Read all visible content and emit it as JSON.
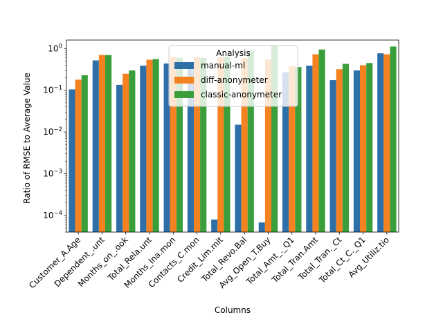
{
  "chart_data": {
    "type": "bar",
    "title": "",
    "xlabel": "Columns",
    "ylabel": "Ratio of RMSE to Average Value",
    "yscale": "log",
    "ylim": [
      4e-05,
      1.6
    ],
    "yticks": [
      {
        "value": 0.0001,
        "base": "10",
        "exp": "−4"
      },
      {
        "value": 0.001,
        "base": "10",
        "exp": "−3"
      },
      {
        "value": 0.01,
        "base": "10",
        "exp": "−2"
      },
      {
        "value": 0.1,
        "base": "10",
        "exp": "−1"
      },
      {
        "value": 1,
        "base": "10",
        "exp": "0"
      }
    ],
    "categories": [
      "Customer_A.Age",
      "Dependent_.unt",
      "Months_on_.ook",
      "Total_Rela.unt",
      "Months_Ina.mon",
      "Contacts_C.mon",
      "Credit_Lim.mit",
      "Total_Revo.Bal",
      "Avg_Open_T.Buy",
      "Total_Amt_._Q1",
      "Total_Tran.Amt",
      "Total_Tran._Ct",
      "Total_Ct_C._Q1",
      "Avg_Utiliz.tio"
    ],
    "series": [
      {
        "name": "manual-ml",
        "color": "#2f6fa8",
        "values": [
          0.105,
          0.52,
          0.135,
          0.39,
          0.44,
          0.43,
          8e-05,
          0.015,
          6.8e-05,
          0.27,
          0.39,
          0.175,
          0.3,
          0.77
        ]
      },
      {
        "name": "diff-anonymeter",
        "color": "#f58220",
        "values": [
          0.18,
          0.7,
          0.25,
          0.54,
          0.63,
          0.62,
          0.62,
          0.6,
          0.55,
          0.38,
          0.73,
          0.32,
          0.4,
          0.73
        ]
      },
      {
        "name": "classic-anonymeter",
        "color": "#3a9f3a",
        "values": [
          0.23,
          0.7,
          0.3,
          0.56,
          0.6,
          0.6,
          0.62,
          0.88,
          1.15,
          0.36,
          0.95,
          0.43,
          0.45,
          1.12
        ]
      }
    ],
    "legend": {
      "title": "Analysis",
      "placement": "upper-center"
    },
    "grid": false
  }
}
